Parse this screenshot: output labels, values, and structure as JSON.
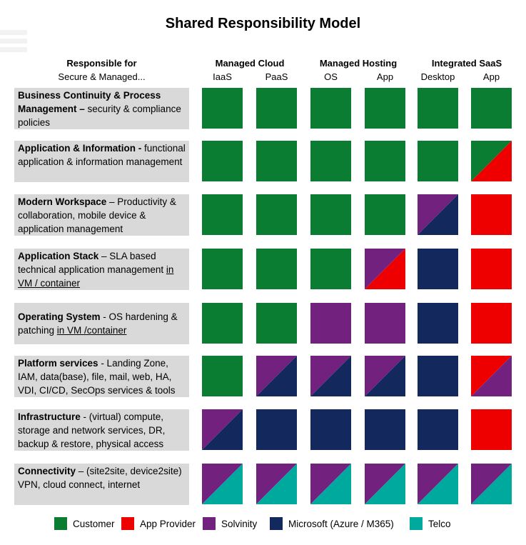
{
  "title": "Shared Responsibility Model",
  "header": {
    "responsible_title": "Responsible for",
    "responsible_subtitle": "Secure & Managed...",
    "groups": [
      {
        "label": "Managed  Cloud"
      },
      {
        "label": "Managed Hosting"
      },
      {
        "label": "Integrated SaaS"
      }
    ],
    "columns": [
      "IaaS",
      "PaaS",
      "OS",
      "App",
      "Desktop",
      "App"
    ]
  },
  "colors": {
    "Customer": "#0a7d32",
    "App Provider": "#ee0000",
    "Solvinity": "#72217f",
    "Microsoft": "#13295e",
    "Telco": "#00a99d"
  },
  "rows": [
    {
      "bold": "Business Continuity &  Process Management –",
      "text": " security & compliance policies",
      "underline": "",
      "cells": [
        [
          "Customer"
        ],
        [
          "Customer"
        ],
        [
          "Customer"
        ],
        [
          "Customer"
        ],
        [
          "Customer"
        ],
        [
          "Customer"
        ]
      ]
    },
    {
      "bold": "Application & Information -",
      "text": " functional application & information management",
      "underline": "",
      "cells": [
        [
          "Customer"
        ],
        [
          "Customer"
        ],
        [
          "Customer"
        ],
        [
          "Customer"
        ],
        [
          "Customer"
        ],
        [
          "Customer",
          "App Provider"
        ]
      ]
    },
    {
      "bold": "Modern Workspace",
      "text": " – Productivity & collaboration, mobile device & application management",
      "underline": "",
      "cells": [
        [
          "Customer"
        ],
        [
          "Customer"
        ],
        [
          "Customer"
        ],
        [
          "Customer"
        ],
        [
          "Solvinity",
          "Microsoft"
        ],
        [
          "App Provider"
        ]
      ]
    },
    {
      "bold": "Application Stack",
      "text": " – SLA based technical application management ",
      "underline": "in VM / container",
      "cells": [
        [
          "Customer"
        ],
        [
          "Customer"
        ],
        [
          "Customer"
        ],
        [
          "Solvinity",
          "App Provider"
        ],
        [
          "Microsoft"
        ],
        [
          "App Provider"
        ]
      ]
    },
    {
      "bold": "Operating System",
      "text": " - OS hardening & patching ",
      "underline": "in VM /container",
      "cells": [
        [
          "Customer"
        ],
        [
          "Customer"
        ],
        [
          "Solvinity"
        ],
        [
          "Solvinity"
        ],
        [
          "Microsoft"
        ],
        [
          "App Provider"
        ]
      ]
    },
    {
      "bold": "Platform services",
      "text": " - Landing Zone, IAM, data(base), file, mail, web, HA, VDI, CI/CD, SecOps services & tools",
      "underline": "",
      "cells": [
        [
          "Customer"
        ],
        [
          "Solvinity",
          "Microsoft"
        ],
        [
          "Solvinity",
          "Microsoft"
        ],
        [
          "Solvinity",
          "Microsoft"
        ],
        [
          "Microsoft"
        ],
        [
          "App Provider",
          "Solvinity"
        ]
      ]
    },
    {
      "bold": "Infrastructure",
      "text": " - (virtual) compute, storage and network services, DR, backup & restore, physical access",
      "underline": "",
      "cells": [
        [
          "Solvinity",
          "Microsoft"
        ],
        [
          "Microsoft"
        ],
        [
          "Microsoft"
        ],
        [
          "Microsoft"
        ],
        [
          "Microsoft"
        ],
        [
          "App Provider"
        ]
      ]
    },
    {
      "bold": "Connectivity",
      "text": " – (site2site, device2site) VPN, cloud connect, internet",
      "underline": "",
      "cells": [
        [
          "Solvinity",
          "Telco"
        ],
        [
          "Solvinity",
          "Telco"
        ],
        [
          "Solvinity",
          "Telco"
        ],
        [
          "Solvinity",
          "Telco"
        ],
        [
          "Solvinity",
          "Telco"
        ],
        [
          "Solvinity",
          "Telco"
        ]
      ]
    }
  ],
  "legend": [
    {
      "key": "Customer",
      "label": "Customer"
    },
    {
      "key": "App Provider",
      "label": "App Provider"
    },
    {
      "key": "Solvinity",
      "label": "Solvinity"
    },
    {
      "key": "Microsoft",
      "label": "Microsoft (Azure / M365)"
    },
    {
      "key": "Telco",
      "label": "Telco"
    }
  ]
}
